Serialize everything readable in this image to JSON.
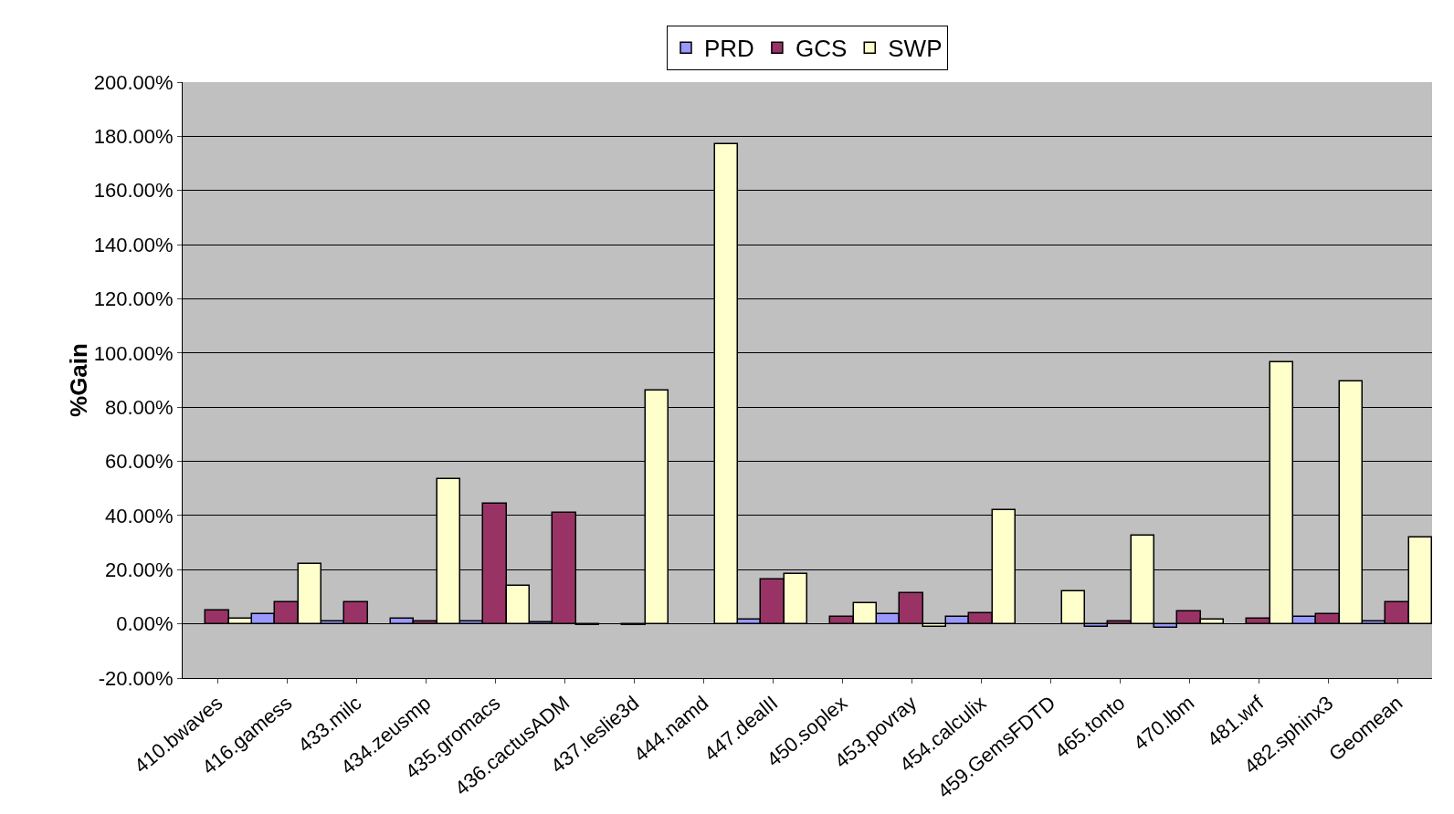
{
  "chart_data": {
    "type": "bar",
    "ylabel": "%Gain",
    "categories": [
      "410.bwaves",
      "416.gamess",
      "433.milc",
      "434.zeusmp",
      "435.gromacs",
      "436.cactusADM",
      "437.leslie3d",
      "444.namd",
      "447.dealII",
      "450.soplex",
      "453.povray",
      "454.calculix",
      "459.GemsFDTD",
      "465.tonto",
      "470.lbm",
      "481.wrf",
      "482.sphinx3",
      "Geomean"
    ],
    "series": [
      {
        "name": "PRD",
        "color": "#9999ff",
        "values": [
          null,
          3.5,
          1,
          2,
          0.8,
          0.5,
          null,
          null,
          1.5,
          null,
          3.5,
          2.5,
          null,
          -1,
          -1.5,
          null,
          2.5,
          1
        ]
      },
      {
        "name": "GCS",
        "color": "#993366",
        "values": [
          5,
          8,
          8,
          0.8,
          44.5,
          41,
          -0.5,
          null,
          16.5,
          2.5,
          11.5,
          4,
          null,
          1,
          4.5,
          2,
          3.5,
          8
        ]
      },
      {
        "name": "SWP",
        "color": "#ffffcc",
        "values": [
          2,
          22,
          null,
          53.5,
          14,
          -0.5,
          86,
          177,
          18.5,
          7.5,
          -1,
          42,
          12,
          32.5,
          1.5,
          96.5,
          89.5,
          32
        ]
      }
    ],
    "ylim": [
      -20,
      200
    ],
    "yticks": [
      {
        "value": -20,
        "label": "-20.00%"
      },
      {
        "value": 0,
        "label": "0.00%"
      },
      {
        "value": 20,
        "label": "20.00%"
      },
      {
        "value": 40,
        "label": "40.00%"
      },
      {
        "value": 60,
        "label": "60.00%"
      },
      {
        "value": 80,
        "label": "80.00%"
      },
      {
        "value": 100,
        "label": "100.00%"
      },
      {
        "value": 120,
        "label": "120.00%"
      },
      {
        "value": 140,
        "label": "140.00%"
      },
      {
        "value": 160,
        "label": "160.00%"
      },
      {
        "value": 180,
        "label": "180.00%"
      },
      {
        "value": 200,
        "label": "200.00%"
      }
    ],
    "grid": "y",
    "legend": "top"
  }
}
